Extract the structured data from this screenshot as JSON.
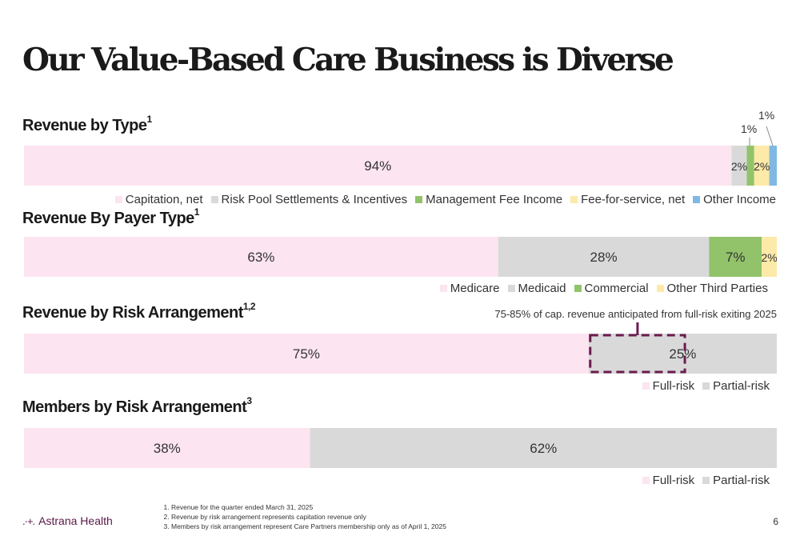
{
  "title": "Our Value-Based Care Business is Diverse",
  "chart_data": [
    {
      "type": "bar",
      "orientation": "horizontal-stacked-100",
      "title": "Revenue by Type",
      "title_sup": "1",
      "series": [
        {
          "name": "Capitation, net",
          "value": 94,
          "label": "94%",
          "color": "#fce4f1"
        },
        {
          "name": "Risk Pool Settlements & Incentives",
          "value": 2,
          "label": "2%",
          "color": "#d9d9d9"
        },
        {
          "name": "Management Fee Income",
          "value": 1,
          "label": "1%",
          "color": "#92c36a"
        },
        {
          "name": "Fee-for-service, net",
          "value": 2,
          "label": "2%",
          "color": "#fde9a8"
        },
        {
          "name": "Other Income",
          "value": 1,
          "label": "1%",
          "color": "#7fb9e3"
        }
      ]
    },
    {
      "type": "bar",
      "orientation": "horizontal-stacked-100",
      "title": "Revenue By Payer Type",
      "title_sup": "1",
      "series": [
        {
          "name": "Medicare",
          "value": 63,
          "label": "63%",
          "color": "#fce4f1"
        },
        {
          "name": "Medicaid",
          "value": 28,
          "label": "28%",
          "color": "#d9d9d9"
        },
        {
          "name": "Commercial",
          "value": 7,
          "label": "7%",
          "color": "#92c36a"
        },
        {
          "name": "Other Third Parties",
          "value": 2,
          "label": "2%",
          "color": "#fde9a8"
        }
      ]
    },
    {
      "type": "bar",
      "orientation": "horizontal-stacked-100",
      "title": "Revenue by Risk Arrangement",
      "title_sup": "1,2",
      "annotation": "75-85% of cap. revenue anticipated from full-risk exiting 2025",
      "annotation_range": [
        75,
        88
      ],
      "series": [
        {
          "name": "Full-risk",
          "value": 75,
          "label": "75%",
          "color": "#fce4f1"
        },
        {
          "name": "Partial-risk",
          "value": 25,
          "label": "25%",
          "color": "#d9d9d9"
        }
      ]
    },
    {
      "type": "bar",
      "orientation": "horizontal-stacked-100",
      "title": "Members by Risk Arrangement",
      "title_sup": "3",
      "series": [
        {
          "name": "Full-risk",
          "value": 38,
          "label": "38%",
          "color": "#fce4f1"
        },
        {
          "name": "Partial-risk",
          "value": 62,
          "label": "62%",
          "color": "#d9d9d9"
        }
      ]
    }
  ],
  "footnotes": [
    "Revenue for the quarter ended March 31, 2025",
    "Revenue by risk arrangement represents capitation revenue only",
    "Members by risk arrangement represent Care Partners membership only as of April 1, 2025"
  ],
  "logo_text": "Astrana Health",
  "page_number": "6"
}
